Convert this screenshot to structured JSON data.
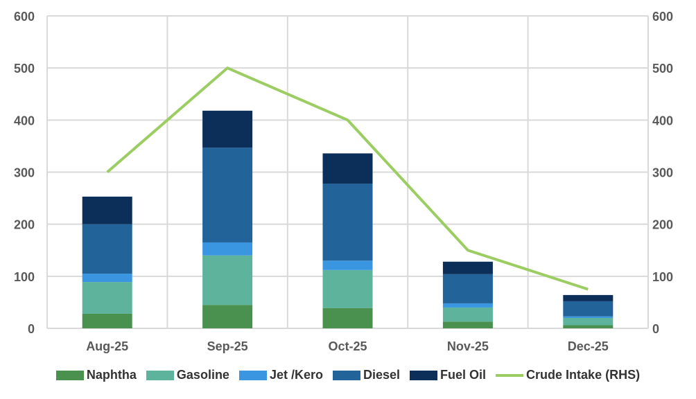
{
  "chart_data": {
    "type": "bar",
    "stacked": true,
    "categories": [
      "Aug-25",
      "Sep-25",
      "Oct-25",
      "Nov-25",
      "Dec-25"
    ],
    "series": [
      {
        "name": "Naphtha",
        "color": "#4a9150",
        "values": [
          28,
          45,
          39,
          13,
          6
        ]
      },
      {
        "name": "Gasoline",
        "color": "#5db39b",
        "values": [
          61,
          95,
          73,
          27,
          14
        ]
      },
      {
        "name": "Jet /Kero",
        "color": "#3a96e0",
        "values": [
          16,
          25,
          18,
          8,
          3
        ]
      },
      {
        "name": "Diesel",
        "color": "#226399",
        "values": [
          95,
          182,
          148,
          56,
          29
        ]
      },
      {
        "name": "Fuel Oil",
        "color": "#0b2f59",
        "values": [
          53,
          71,
          58,
          24,
          12
        ]
      }
    ],
    "line_series": {
      "name": "Crude Intake (RHS)",
      "color": "#9ccd62",
      "axis": "right",
      "values": [
        300,
        500,
        400,
        150,
        75
      ]
    },
    "ylim": [
      0,
      600
    ],
    "y2lim": [
      0,
      600
    ],
    "yticks": [
      0,
      100,
      200,
      300,
      400,
      500,
      600
    ],
    "grid": true,
    "legend_position": "bottom"
  }
}
